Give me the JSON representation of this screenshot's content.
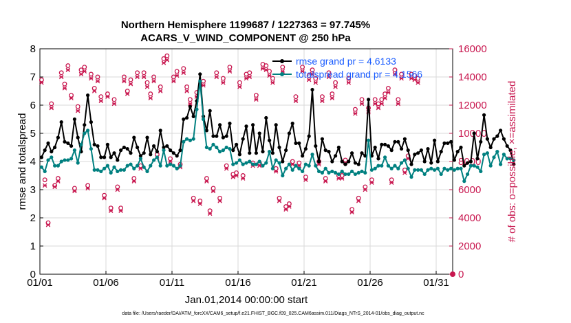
{
  "chart_data": {
    "type": "line",
    "title_line1": "Northern Hemisphere 1199687 / 1227363 = 97.745%",
    "title_line2": "ACARS_V_WIND_COMPONENT @ 250 hPa",
    "xlabel": "Jan.01,2014 00:00:00 start",
    "ylabel_left": "rmse and totalspread",
    "ylabel_right": "# of obs: o=possible; ×=assimilated",
    "footer": "data file: /Users/raeder/DAI/ATM_forcXX/CAM6_setup/f.e21.FHIST_BGC.f09_025.CAM6assim.011/Diags_NTrS_2014-01/obs_diag_output.nc",
    "xlim": [
      1,
      32.25
    ],
    "ylim_left": [
      0,
      8
    ],
    "ylim_right": [
      0,
      16000
    ],
    "x_ticks": [
      1,
      6,
      11,
      16,
      21,
      26,
      31
    ],
    "x_tick_labels": [
      "01/01",
      "01/06",
      "01/11",
      "01/16",
      "01/21",
      "01/26",
      "01/31"
    ],
    "y_ticks_left": [
      "0",
      "1",
      "2",
      "3",
      "4",
      "5",
      "6",
      "7",
      "8"
    ],
    "y_ticks_right": [
      "0",
      "2000",
      "4000",
      "6000",
      "8000",
      "10000",
      "12000",
      "14000",
      "16000"
    ],
    "grid": true,
    "legend_position": "top-right",
    "colors": {
      "rmse": "#000000",
      "spread": "#008080",
      "obs": "#c8174f",
      "legend_text": "#1a5cff",
      "grid": "#d9d9d9"
    },
    "series": [
      {
        "name": "rmse grand pr = 4.6133",
        "color": "#000000",
        "values": [
          4.15,
          4.4,
          4.65,
          4.35,
          4.5,
          4.85,
          5.4,
          4.7,
          4.65,
          4.55,
          5.5,
          4.85,
          4.35,
          5.3,
          6.35,
          5.4,
          4.6,
          4.55,
          4.15,
          4.15,
          4.6,
          4.15,
          4.3,
          4.05,
          4.4,
          4.5,
          4.45,
          4.3,
          4.85,
          4.5,
          4.2,
          4.3,
          4.85,
          4.25,
          4.55,
          4.35,
          5.1,
          4.5,
          4.55,
          4.4,
          4.3,
          4.2,
          4.4,
          5.5,
          5.55,
          5.95,
          5.6,
          6.15,
          7.1,
          5.6,
          5.1,
          5.8,
          4.9,
          4.9,
          5.3,
          4.85,
          4.9,
          5.35,
          4.4,
          4.6,
          4.25,
          4.8,
          5.25,
          4.3,
          5.3,
          4.3,
          5.0,
          4.35,
          5.55,
          4.75,
          4.3,
          5.3,
          4.5,
          4.0,
          4.4,
          5.0,
          5.35,
          4.65,
          4.65,
          4.2,
          4.45,
          4.9,
          6.55,
          4.55,
          4.0,
          4.8,
          4.4,
          4.35,
          4.0,
          4.2,
          4.5,
          4.0,
          3.9,
          4.0,
          4.3,
          3.95,
          3.9,
          4.3,
          4.2,
          6.2,
          4.2,
          4.5,
          4.1,
          4.6,
          4.6,
          4.55,
          4.4,
          4.7,
          4.7,
          4.45,
          4.8,
          4.4,
          3.9,
          4.25,
          4.3,
          4.4,
          4.0,
          4.45,
          3.95,
          4.75,
          4.0,
          4.35,
          4.65,
          4.65,
          4.7,
          4.05,
          4.35,
          4.5,
          3.85,
          3.95,
          4.0,
          5.0,
          4.1,
          4.7,
          5.65,
          4.8,
          4.5,
          4.8,
          4.9,
          5.1,
          4.8,
          4.55,
          4.4,
          3.9
        ]
      },
      {
        "name": "totalspread grand pr = 4.1566",
        "color": "#008080",
        "values": [
          3.8,
          3.65,
          4.05,
          4.15,
          3.85,
          3.85,
          4.0,
          4.05,
          4.05,
          4.1,
          4.4,
          3.95,
          4.6,
          5.0,
          5.1,
          4.45,
          3.7,
          3.7,
          3.65,
          3.75,
          3.85,
          3.6,
          3.8,
          3.65,
          3.7,
          3.7,
          3.85,
          3.9,
          3.75,
          3.85,
          4.1,
          3.8,
          3.65,
          3.85,
          4.05,
          4.15,
          3.85,
          4.4,
          3.85,
          3.9,
          3.85,
          3.75,
          3.85,
          4.7,
          4.8,
          4.75,
          4.8,
          5.85,
          6.85,
          5.5,
          4.5,
          4.45,
          4.6,
          4.5,
          4.35,
          4.4,
          4.5,
          4.45,
          3.9,
          3.95,
          4.05,
          3.9,
          3.95,
          4.0,
          3.9,
          3.9,
          4.0,
          3.85,
          3.95,
          4.35,
          3.75,
          4.05,
          3.95,
          3.5,
          3.75,
          3.9,
          3.7,
          3.85,
          3.75,
          3.65,
          3.9,
          3.85,
          4.25,
          3.85,
          3.65,
          3.6,
          3.75,
          3.6,
          3.65,
          3.6,
          3.55,
          3.65,
          3.55,
          3.55,
          3.65,
          3.55,
          3.6,
          3.65,
          3.6,
          4.75,
          3.7,
          3.75,
          3.85,
          3.85,
          4.15,
          3.85,
          3.75,
          3.85,
          3.75,
          3.95,
          4.05,
          3.75,
          3.45,
          3.7,
          3.7,
          3.7,
          3.55,
          3.7,
          3.75,
          3.7,
          3.75,
          3.55,
          3.75,
          3.7,
          3.75,
          3.7,
          3.75,
          3.75,
          3.3,
          3.55,
          3.85,
          3.85,
          3.8,
          3.65,
          4.25,
          4.3,
          3.85,
          4.15,
          4.35,
          3.9,
          4.25,
          4.1,
          4.1,
          4.05
        ]
      }
    ],
    "obs_possible": [
      13800,
      6700,
      3650,
      12100,
      6300,
      6800,
      14300,
      13500,
      14800,
      12700,
      6100,
      11900,
      14500,
      14700,
      6300,
      14200,
      13200,
      14000,
      12600,
      5600,
      12800,
      4700,
      12400,
      6200,
      4700,
      14000,
      13000,
      13800,
      6800,
      14300,
      7700,
      14300,
      13600,
      12800,
      14000,
      8500,
      13300,
      15300,
      15500,
      8200,
      14000,
      14400,
      7800,
      14600,
      13300,
      12400,
      5400,
      12900,
      5200,
      13700,
      6800,
      4500,
      6100,
      14300,
      5400,
      13900,
      7700,
      14700,
      7100,
      7200,
      13600,
      7000,
      14200,
      14300,
      7900,
      12700,
      7900,
      14900,
      14800,
      14400,
      13900,
      7500,
      5400,
      14700,
      4800,
      5000,
      8000,
      12600,
      7900,
      14700,
      6900,
      14100,
      14500,
      13900,
      8000,
      12600,
      6800,
      14300,
      12800,
      13600,
      7000,
      7000,
      8100,
      13900,
      4600,
      11700,
      5400,
      12400,
      6200,
      11800,
      6700,
      12400,
      12100,
      12400,
      12800,
      13200,
      6700,
      14500,
      12400,
      14200,
      7400,
      8400,
      14200,
      14100,
      13900
    ],
    "obs_assimilated": [
      13600,
      6300,
      3500,
      11800,
      6200,
      6600,
      14000,
      13200,
      14500,
      12500,
      5900,
      11600,
      14200,
      14400,
      6100,
      13900,
      13000,
      13700,
      12300,
      5400,
      12600,
      4500,
      12100,
      6000,
      4500,
      13700,
      12800,
      13500,
      6600,
      14000,
      7500,
      14000,
      13300,
      12500,
      13700,
      8300,
      13000,
      15000,
      15200,
      8000,
      13700,
      14100,
      7600,
      14300,
      13000,
      12100,
      5200,
      12600,
      5000,
      13400,
      6600,
      4300,
      5900,
      14000,
      5200,
      13600,
      7500,
      14400,
      6900,
      7000,
      13300,
      6800,
      13900,
      14000,
      7700,
      12400,
      7700,
      14600,
      14500,
      14100,
      13600,
      7300,
      5200,
      14400,
      4600,
      4800,
      7800,
      12300,
      7700,
      14400,
      6700,
      13800,
      14200,
      13600,
      7800,
      12300,
      6600,
      14000,
      12500,
      13300,
      6800,
      6800,
      7900,
      13600,
      4400,
      11400,
      5200,
      12100,
      6000,
      11500,
      6500,
      12100,
      11800,
      12100,
      12500,
      12900,
      6500,
      14200,
      12100,
      13900,
      7200,
      8200,
      13900,
      13800,
      13600
    ],
    "obs_end_point": {
      "x": 32.25,
      "value": 0
    }
  }
}
